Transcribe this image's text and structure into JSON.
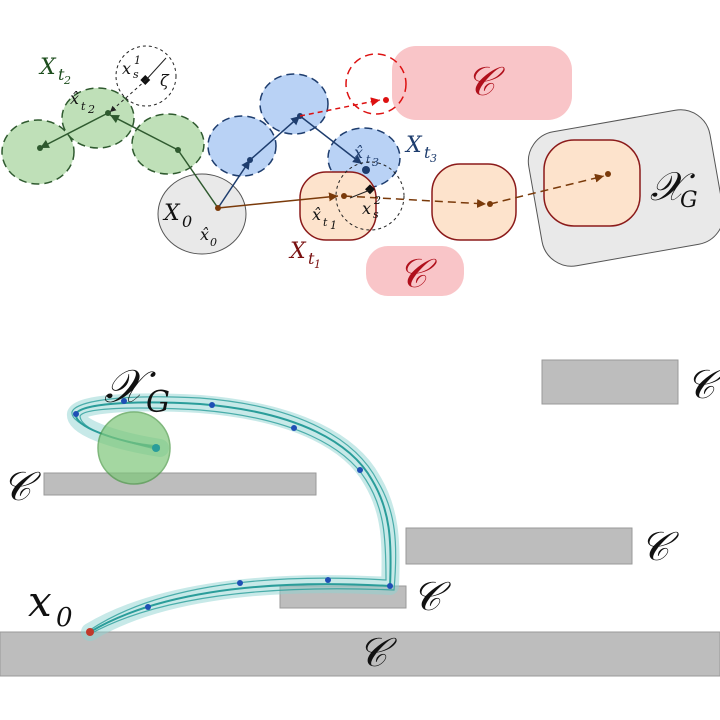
{
  "colors": {
    "constraint_red": "#f9c5c8",
    "constraint_red_text": "#b0101c",
    "goal_gray": "#e9e9e9",
    "green_fill": "#bfe0b8",
    "green_stroke": "#2f5a2f",
    "blue_fill": "#b9d2f5",
    "blue_stroke": "#1e3d6e",
    "orange_fill": "#fde3cc",
    "orange_stroke": "#8b1a1a",
    "brown": "#7a3a0a",
    "teal": "#2a9d9a",
    "obstacle": "#bdbdbd"
  },
  "top": {
    "labels": {
      "X_t2": "X",
      "X_t2_sub": "t",
      "X_t2_subsub": "2",
      "xhat_t2": "x̂",
      "xhat_t2_sub": "t",
      "xhat_t2_subsub": "2",
      "xs1": "x",
      "xs1_sup": "1",
      "xs1_sub": "s",
      "zeta": "ζ",
      "X0": "X",
      "X0_sub": "0",
      "xhat0": "x̂",
      "xhat0_sub": "0",
      "xhat_t3": "x̂",
      "xhat_t3_sub": "t",
      "xhat_t3_subsub": "3",
      "X_t3": "X",
      "X_t3_sub": "t",
      "X_t3_subsub": "3",
      "xs2": "x",
      "xs2_sup": "2",
      "xs2_sub": "s",
      "xhat_t1": "x̂",
      "xhat_t1_sub": "t",
      "xhat_t1_subsub": "1",
      "X_t1": "X",
      "X_t1_sub": "t",
      "X_t1_subsub": "1",
      "C_top": "𝒞",
      "C_bottom": "𝒞",
      "XG": "𝒳",
      "XG_sub": "G"
    }
  },
  "bottom": {
    "labels": {
      "XG": "𝒳",
      "XG_sub": "G",
      "x0": "x",
      "x0_sub": "0",
      "C_left": "𝒞",
      "C_top_right": "𝒞",
      "C_mid_right": "𝒞",
      "C_step": "𝒞",
      "C_floor": "𝒞"
    }
  }
}
